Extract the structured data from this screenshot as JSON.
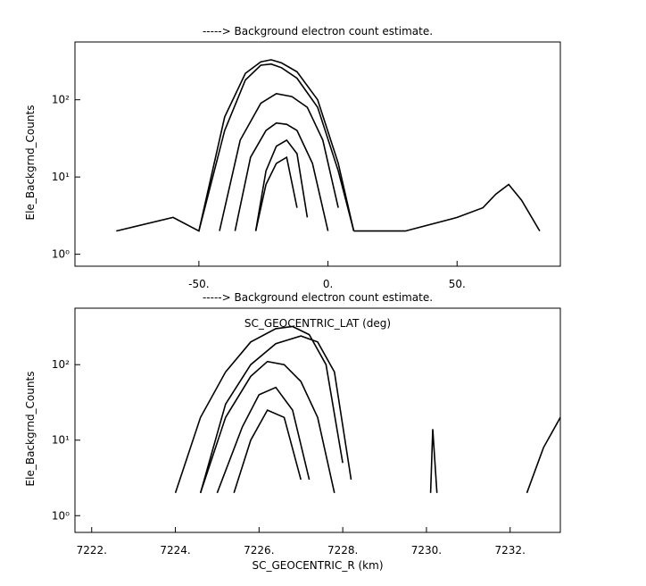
{
  "chart_data": [
    {
      "type": "line",
      "title": "-----> Background electron count estimate.",
      "xlabel": "SC_GEOCENTRIC_LAT (deg)",
      "ylabel": "Ele_Backgrnd_Counts",
      "yscale": "log",
      "xlim": [
        -98,
        90
      ],
      "ylim": [
        0.7,
        560
      ],
      "grid": false,
      "legend": "none",
      "x_ticks": [
        -50,
        0,
        50
      ],
      "x_tick_labels": [
        "-50.",
        "0.",
        "50."
      ],
      "y_ticks": [
        1,
        10,
        100
      ],
      "y_tick_labels": [
        "10⁰",
        "10¹",
        "10²"
      ],
      "series": [
        {
          "name": "",
          "x": [
            -82,
            -60,
            -50,
            -40,
            -32,
            -26,
            -22,
            -18,
            -12,
            -4,
            4,
            10
          ],
          "values": [
            2,
            3,
            2,
            60,
            220,
            310,
            330,
            300,
            230,
            100,
            15,
            2
          ]
        },
        {
          "name": "",
          "x": [
            -50,
            -40,
            -32,
            -26,
            -22,
            -18,
            -12,
            -4,
            4,
            10
          ],
          "values": [
            2,
            40,
            180,
            280,
            290,
            260,
            190,
            80,
            12,
            2
          ]
        },
        {
          "name": "",
          "x": [
            -42,
            -34,
            -26,
            -20,
            -14,
            -8,
            -2,
            4
          ],
          "values": [
            2,
            30,
            90,
            120,
            110,
            80,
            30,
            4
          ]
        },
        {
          "name": "",
          "x": [
            -36,
            -30,
            -24,
            -20,
            -16,
            -12,
            -6,
            0
          ],
          "values": [
            2,
            18,
            40,
            50,
            48,
            40,
            15,
            2
          ]
        },
        {
          "name": "",
          "x": [
            -28,
            -24,
            -20,
            -16,
            -12,
            -8
          ],
          "values": [
            2,
            12,
            25,
            30,
            20,
            3
          ]
        },
        {
          "name": "",
          "x": [
            -28,
            -24,
            -20,
            -16,
            -12
          ],
          "values": [
            2,
            8,
            15,
            18,
            4
          ]
        },
        {
          "name": "",
          "x": [
            10,
            30,
            50,
            60,
            65,
            70,
            75,
            82
          ],
          "values": [
            2,
            2,
            3,
            4,
            6,
            8,
            5,
            2
          ]
        }
      ]
    },
    {
      "type": "line",
      "title": "-----> Background electron count estimate.",
      "xlabel": "SC_GEOCENTRIC_R (km)",
      "ylabel": "Ele_Backgrnd_Counts",
      "yscale": "log",
      "xlim": [
        7221.6,
        7233.2
      ],
      "ylim": [
        0.6,
        560
      ],
      "grid": false,
      "legend": "none",
      "x_ticks": [
        7222,
        7224,
        7226,
        7228,
        7230,
        7232
      ],
      "x_tick_labels": [
        "7222.",
        "7224.",
        "7226.",
        "7228.",
        "7230.",
        "7232."
      ],
      "y_ticks": [
        1,
        10,
        100
      ],
      "y_tick_labels": [
        "10⁰",
        "10¹",
        "10²"
      ],
      "series": [
        {
          "name": "",
          "x": [
            7224,
            7224.6,
            7225.2,
            7225.8,
            7226.4,
            7226.8,
            7227.2,
            7227.6,
            7228
          ],
          "values": [
            2,
            20,
            80,
            200,
            300,
            320,
            250,
            100,
            5
          ]
        },
        {
          "name": "",
          "x": [
            7224.6,
            7225.2,
            7225.8,
            7226.4,
            7227,
            7227.4,
            7227.8,
            7228.2
          ],
          "values": [
            2,
            30,
            100,
            190,
            240,
            200,
            80,
            3
          ]
        },
        {
          "name": "",
          "x": [
            7224.6,
            7225.2,
            7225.8,
            7226.2,
            7226.6,
            7227,
            7227.4,
            7227.8
          ],
          "values": [
            2,
            20,
            70,
            110,
            100,
            60,
            20,
            2
          ]
        },
        {
          "name": "",
          "x": [
            7225,
            7225.6,
            7226,
            7226.4,
            7226.8,
            7227.2
          ],
          "values": [
            2,
            15,
            40,
            50,
            25,
            3
          ]
        },
        {
          "name": "",
          "x": [
            7225.4,
            7225.8,
            7226.2,
            7226.6,
            7227
          ],
          "values": [
            2,
            10,
            25,
            20,
            3
          ]
        },
        {
          "name": "",
          "x": [
            7230.1,
            7230.15,
            7230.25
          ],
          "values": [
            2,
            14,
            2
          ]
        },
        {
          "name": "",
          "x": [
            7232.4,
            7232.8,
            7233.2
          ],
          "values": [
            2,
            8,
            20
          ]
        }
      ]
    }
  ]
}
